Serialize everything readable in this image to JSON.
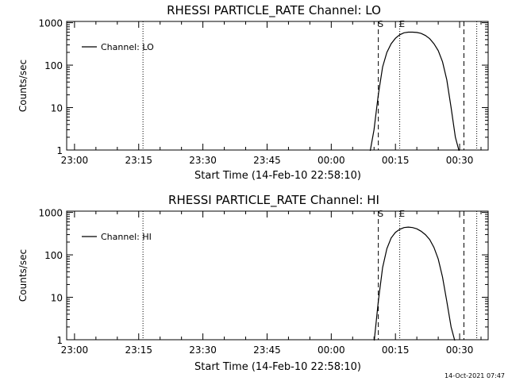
{
  "footer": {
    "timestamp": "14-Oct-2021 07:47"
  },
  "chart_data": [
    {
      "type": "line",
      "title": "RHESSI PARTICLE_RATE Channel: LO",
      "xlabel": "Start Time (14-Feb-10 22:58:10)",
      "ylabel": "Counts/sec",
      "yscale": "log",
      "ylim": [
        1,
        1000
      ],
      "xlim": [
        "22:58:10",
        "00:36:40"
      ],
      "x_tick_labels": [
        "23:00",
        "23:15",
        "23:30",
        "23:45",
        "00:00",
        "00:15",
        "00:30"
      ],
      "y_tick_labels": [
        "1",
        "10",
        "100",
        "1000"
      ],
      "legend": {
        "position": "top-left",
        "entries": [
          "Channel: LO"
        ]
      },
      "markers": {
        "S": "00:11",
        "E": "00:16"
      },
      "dashed_lines": [
        "00:11",
        "00:31"
      ],
      "dotted_lines": [
        "23:16",
        "00:16",
        "00:34"
      ],
      "series": [
        {
          "name": "Channel: LO",
          "x": [
            "00:09",
            "00:10",
            "00:11",
            "00:12",
            "00:13",
            "00:14",
            "00:15",
            "00:16",
            "00:17",
            "00:18",
            "00:19",
            "00:20",
            "00:21",
            "00:22",
            "00:23",
            "00:24",
            "00:25",
            "00:26",
            "00:27",
            "00:28",
            "00:29",
            "00:30"
          ],
          "y": [
            1,
            3,
            20,
            90,
            200,
            320,
            430,
            520,
            580,
            600,
            600,
            590,
            560,
            500,
            420,
            320,
            220,
            120,
            45,
            10,
            2,
            1
          ]
        }
      ]
    },
    {
      "type": "line",
      "title": "RHESSI PARTICLE_RATE Channel: HI",
      "xlabel": "Start Time (14-Feb-10 22:58:10)",
      "ylabel": "Counts/sec",
      "yscale": "log",
      "ylim": [
        1,
        1000
      ],
      "xlim": [
        "22:58:10",
        "00:36:40"
      ],
      "x_tick_labels": [
        "23:00",
        "23:15",
        "23:30",
        "23:45",
        "00:00",
        "00:15",
        "00:30"
      ],
      "y_tick_labels": [
        "1",
        "10",
        "100",
        "1000"
      ],
      "legend": {
        "position": "top-left",
        "entries": [
          "Channel: HI"
        ]
      },
      "markers": {
        "S": "00:11",
        "E": "00:16"
      },
      "dashed_lines": [
        "00:11",
        "00:31"
      ],
      "dotted_lines": [
        "23:16",
        "00:16",
        "00:34"
      ],
      "series": [
        {
          "name": "Channel: HI",
          "x": [
            "00:10",
            "00:11",
            "00:12",
            "00:13",
            "00:14",
            "00:15",
            "00:16",
            "00:17",
            "00:18",
            "00:19",
            "00:20",
            "00:21",
            "00:22",
            "00:23",
            "00:24",
            "00:25",
            "00:26",
            "00:27",
            "00:28",
            "00:29"
          ],
          "y": [
            1,
            8,
            50,
            140,
            250,
            340,
            400,
            440,
            450,
            440,
            410,
            360,
            300,
            230,
            150,
            80,
            30,
            8,
            2,
            1
          ]
        }
      ]
    }
  ]
}
